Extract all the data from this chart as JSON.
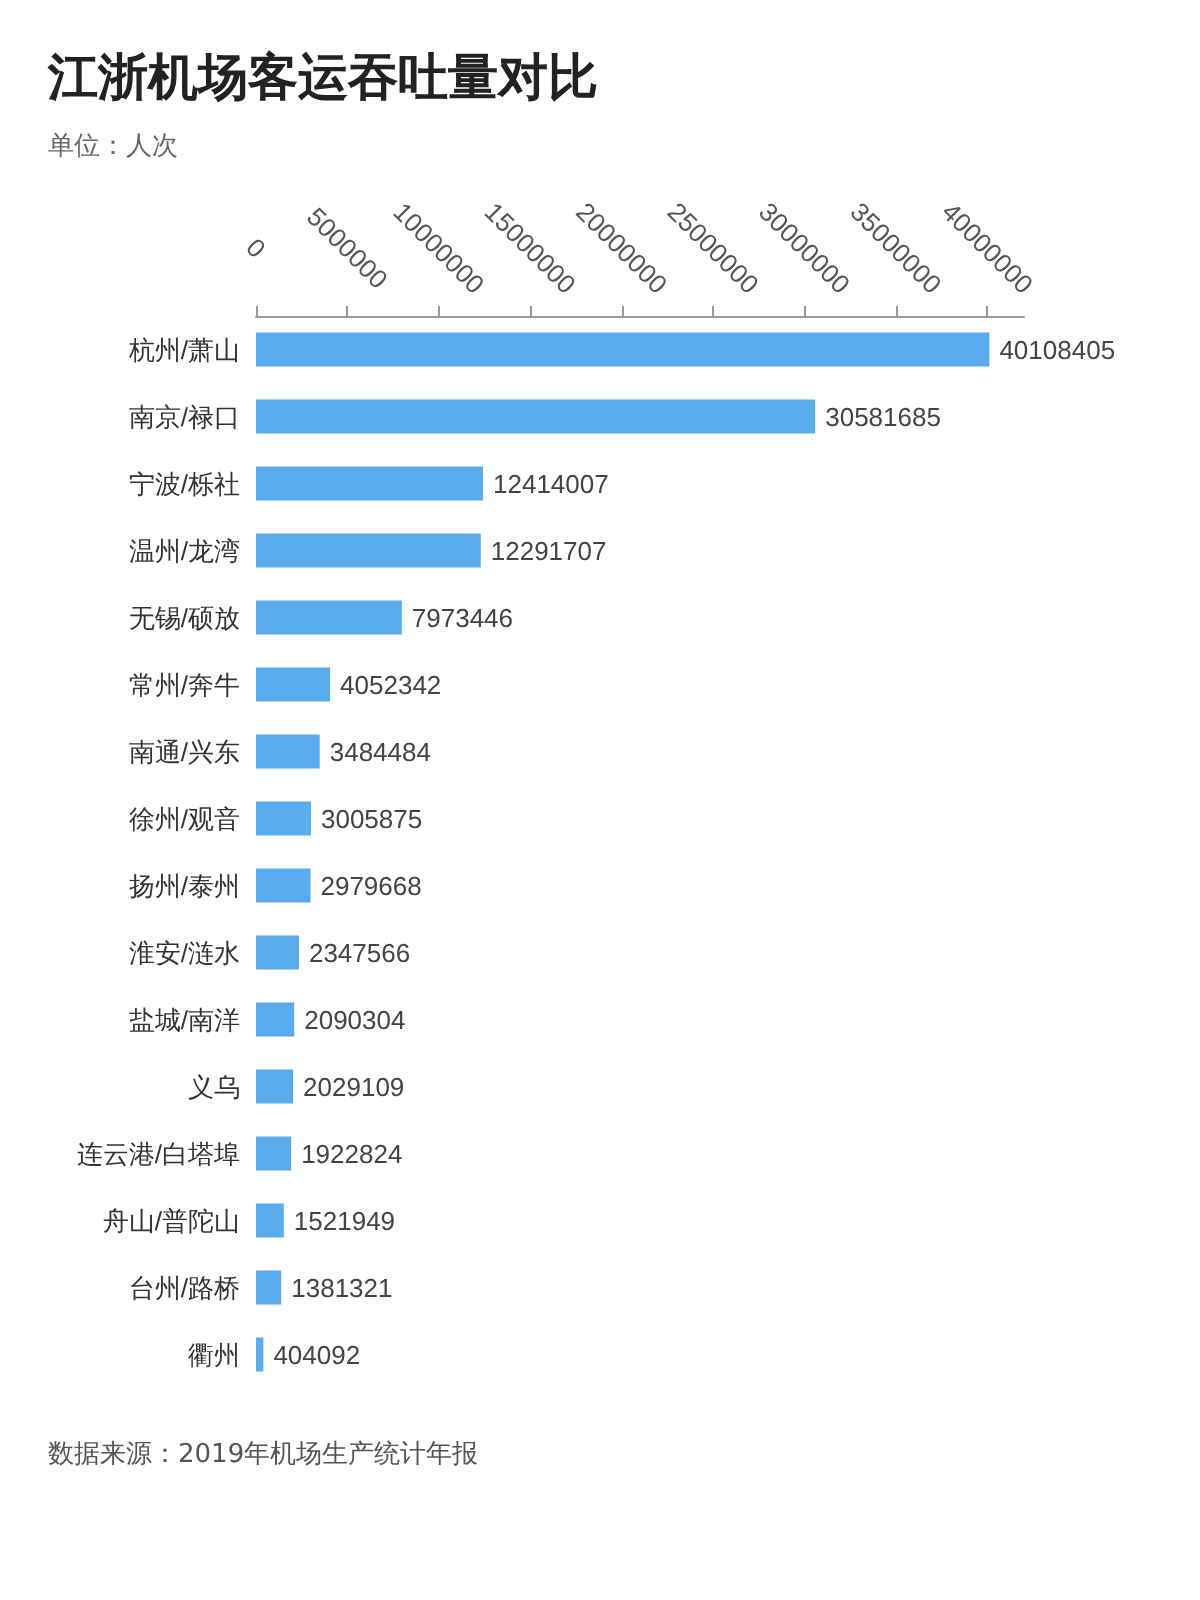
{
  "chart_data": {
    "type": "bar",
    "orientation": "horizontal",
    "title": "江浙机场客运吞吐量对比",
    "subtitle": "单位：人次",
    "annotations": [
      "数据来源：2019年机场生产统计年报"
    ],
    "categories": [
      "杭州/萧山",
      "南京/禄口",
      "宁波/栎社",
      "温州/龙湾",
      "无锡/硕放",
      "常州/奔牛",
      "南通/兴东",
      "徐州/观音",
      "扬州/泰州",
      "淮安/涟水",
      "盐城/南洋",
      "义乌",
      "连云港/白塔埠",
      "舟山/普陀山",
      "台州/路桥",
      "衢州"
    ],
    "values": [
      40108405,
      30581685,
      12414007,
      12291707,
      7973446,
      4052342,
      3484484,
      3005875,
      2979668,
      2347566,
      2090304,
      2029109,
      1922824,
      1521949,
      1381321,
      404092
    ],
    "color": "#5aacee",
    "xlim": [
      0,
      42000000
    ],
    "xticks": [
      0,
      5000000,
      10000000,
      15000000,
      20000000,
      25000000,
      30000000,
      35000000,
      40000000
    ],
    "data_labels": true,
    "grid": false
  }
}
